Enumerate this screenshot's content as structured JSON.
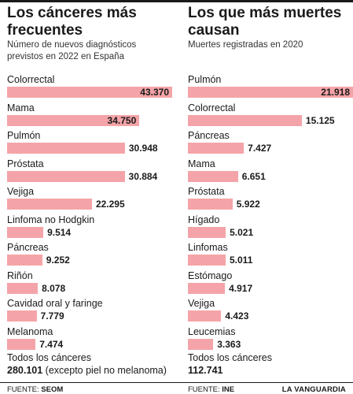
{
  "panels": [
    {
      "title": "Los cánceres más frecuentes",
      "subtitle": "Número de nuevos diagnósticos previstos en 2022 en España",
      "source_label": "FUENTE:",
      "source_name": "SEOM",
      "total_label": "Todos los cánceres",
      "total_value": "280.101",
      "total_note": "(excepto piel no melanoma)"
    },
    {
      "title": "Los que más muertes causan",
      "subtitle": "Muertes registradas en 2020",
      "source_label": "FUENTE:",
      "source_name": "INE",
      "total_label": "Todos los cánceres",
      "total_value": "112.741",
      "total_note": ""
    }
  ],
  "brand": "LA VANGUARDIA",
  "colors": {
    "bar": "#f4a4a8",
    "text": "#1a1a1a"
  },
  "chart_data": [
    {
      "type": "bar",
      "orientation": "horizontal",
      "title": "Los cánceres más frecuentes",
      "subtitle": "Número de nuevos diagnósticos previstos en 2022 en España",
      "categories": [
        "Colorrectal",
        "Mama",
        "Pulmón",
        "Próstata",
        "Vejiga",
        "Linfoma no Hodgkin",
        "Páncreas",
        "Riñón",
        "Cavidad oral y faringe",
        "Melanoma"
      ],
      "values": [
        43370,
        34750,
        30948,
        30884,
        22295,
        9514,
        9252,
        8078,
        7779,
        7474
      ],
      "labels": [
        "43.370",
        "34.750",
        "30.948",
        "30.884",
        "22.295",
        "9.514",
        "9.252",
        "8.078",
        "7.779",
        "7.474"
      ],
      "xlim": [
        0,
        43370
      ]
    },
    {
      "type": "bar",
      "orientation": "horizontal",
      "title": "Los que más muertes causan",
      "subtitle": "Muertes registradas en 2020",
      "categories": [
        "Pulmón",
        "Colorrectal",
        "Páncreas",
        "Mama",
        "Próstata",
        "Hígado",
        "Linfomas",
        "Estómago",
        "Vejiga",
        "Leucemias"
      ],
      "values": [
        21918,
        15125,
        7427,
        6651,
        5922,
        5021,
        5011,
        4917,
        4423,
        3363
      ],
      "labels": [
        "21.918",
        "15.125",
        "7.427",
        "6.651",
        "5.922",
        "5.021",
        "5.011",
        "4.917",
        "4.423",
        "3.363"
      ],
      "xlim": [
        0,
        21918
      ]
    }
  ]
}
